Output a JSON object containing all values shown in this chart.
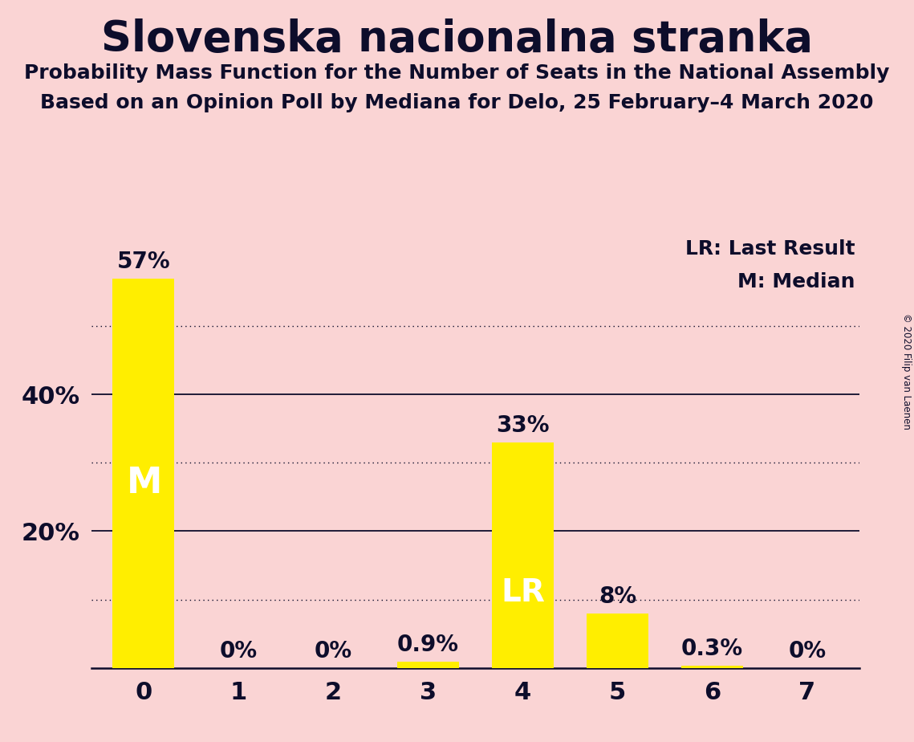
{
  "title": "Slovenska nacionalna stranka",
  "subtitle1": "Probability Mass Function for the Number of Seats in the National Assembly",
  "subtitle2": "Based on an Opinion Poll by Mediana for Delo, 25 February–4 March 2020",
  "copyright": "© 2020 Filip van Laenen",
  "categories": [
    0,
    1,
    2,
    3,
    4,
    5,
    6,
    7
  ],
  "values": [
    57,
    0,
    0,
    0.9,
    33,
    8,
    0.3,
    0
  ],
  "bar_color": "#FFEE00",
  "background_color": "#FAD4D4",
  "text_color": "#0D0D2B",
  "bar_labels": [
    "57%",
    "0%",
    "0%",
    "0.9%",
    "33%",
    "8%",
    "0.3%",
    "0%"
  ],
  "solid_gridlines": [
    20,
    40
  ],
  "dotted_gridlines": [
    10,
    30,
    50
  ],
  "ylim": [
    0,
    63
  ],
  "median_bar": 0,
  "last_result_bar": 4,
  "legend_lr": "LR: Last Result",
  "legend_m": "M: Median",
  "label_m": "M",
  "label_lr": "LR",
  "title_fontsize": 38,
  "subtitle_fontsize": 18,
  "tick_fontsize": 22,
  "bar_label_fontsize": 20,
  "legend_fontsize": 18
}
